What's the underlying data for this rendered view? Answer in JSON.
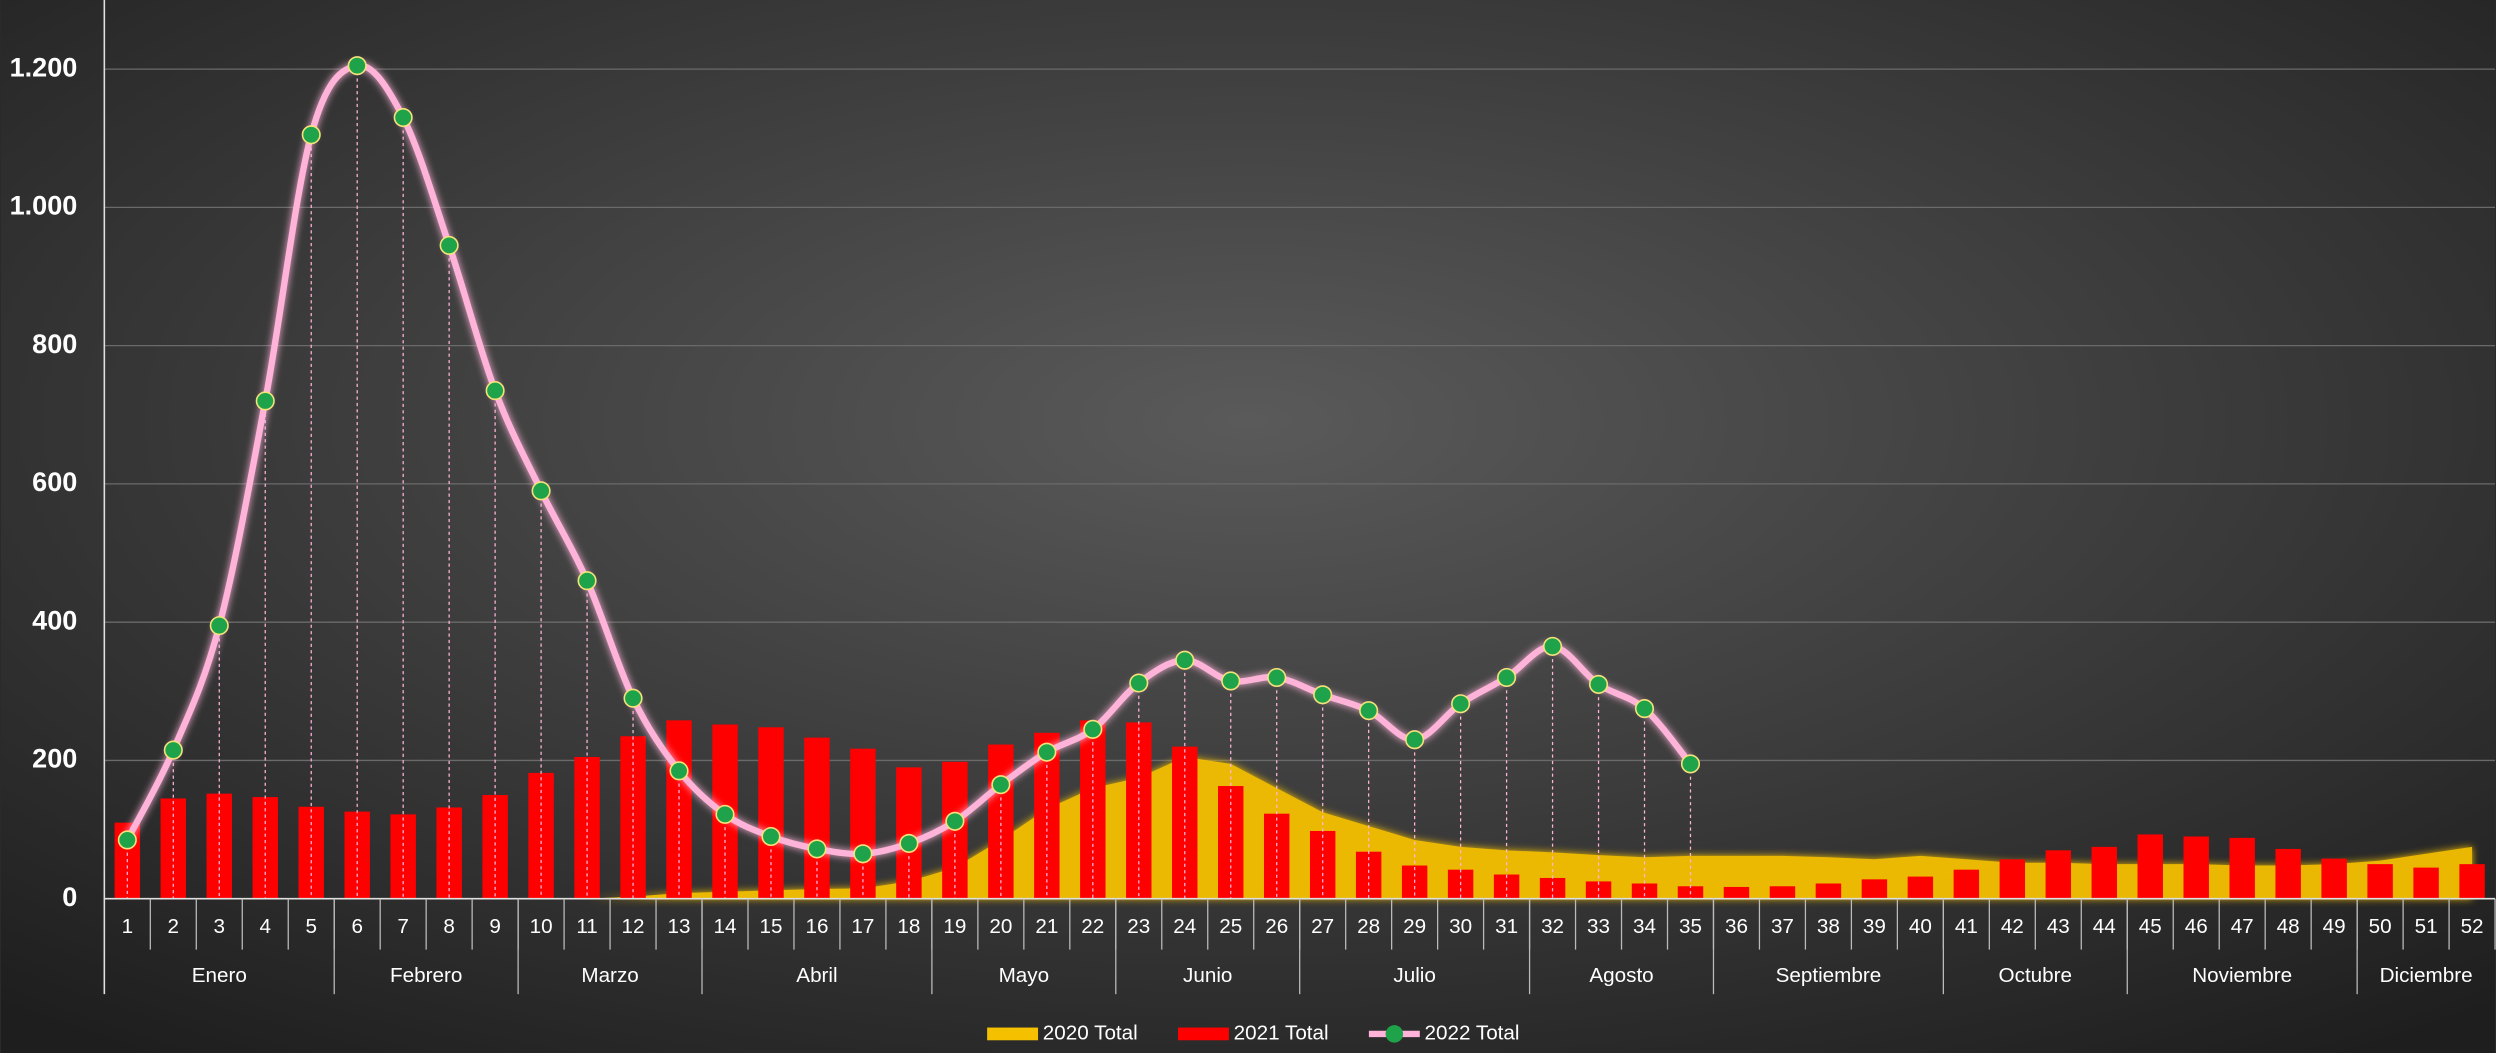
{
  "chart_data": {
    "type": "combo",
    "categories": [
      "1",
      "2",
      "3",
      "4",
      "5",
      "6",
      "7",
      "8",
      "9",
      "10",
      "11",
      "12",
      "13",
      "14",
      "15",
      "16",
      "17",
      "18",
      "19",
      "20",
      "21",
      "22",
      "23",
      "24",
      "25",
      "26",
      "27",
      "28",
      "29",
      "30",
      "31",
      "32",
      "33",
      "34",
      "35",
      "36",
      "37",
      "38",
      "39",
      "40",
      "41",
      "42",
      "43",
      "44",
      "45",
      "46",
      "47",
      "48",
      "49",
      "50",
      "51",
      "52"
    ],
    "groups": [
      {
        "label": "Enero",
        "span": 5
      },
      {
        "label": "Febrero",
        "span": 4
      },
      {
        "label": "Marzo",
        "span": 4
      },
      {
        "label": "Abril",
        "span": 5
      },
      {
        "label": "Mayo",
        "span": 4
      },
      {
        "label": "Junio",
        "span": 4
      },
      {
        "label": "Julio",
        "span": 5
      },
      {
        "label": "Agosto",
        "span": 4
      },
      {
        "label": "Septiembre",
        "span": 5
      },
      {
        "label": "Octubre",
        "span": 4
      },
      {
        "label": "Noviembre",
        "span": 5
      },
      {
        "label": "Diciembre",
        "span": 3
      }
    ],
    "series": [
      {
        "name": "2020 Total",
        "type": "area",
        "color": "#f5c000",
        "values": [
          0,
          0,
          0,
          0,
          0,
          0,
          0,
          0,
          0,
          0,
          0,
          3,
          8,
          10,
          12,
          14,
          15,
          25,
          45,
          85,
          130,
          160,
          175,
          205,
          195,
          160,
          125,
          105,
          85,
          75,
          70,
          67,
          63,
          60,
          62,
          62,
          62,
          60,
          57,
          62,
          57,
          52,
          52,
          50,
          50,
          50,
          48,
          48,
          50,
          55,
          65,
          75
        ]
      },
      {
        "name": "2021 Total",
        "type": "bar",
        "color": "#ff0000",
        "values": [
          110,
          145,
          152,
          147,
          133,
          126,
          122,
          132,
          150,
          182,
          205,
          235,
          258,
          252,
          248,
          233,
          217,
          190,
          198,
          223,
          240,
          258,
          255,
          220,
          163,
          123,
          98,
          68,
          48,
          42,
          35,
          30,
          25,
          22,
          18,
          17,
          18,
          22,
          28,
          32,
          42,
          57,
          70,
          75,
          93,
          90,
          88,
          72,
          58,
          50,
          45,
          50
        ]
      },
      {
        "name": "2022 Total",
        "type": "line",
        "color": "#ffb3d9",
        "marker_color": "#1fa34a",
        "values": [
          85,
          215,
          395,
          720,
          1105,
          1205,
          1130,
          945,
          735,
          590,
          460,
          290,
          185,
          122,
          90,
          72,
          65,
          80,
          112,
          165,
          212,
          245,
          312,
          345,
          315,
          320,
          295,
          272,
          230,
          282,
          320,
          365,
          310,
          275,
          195,
          null,
          null,
          null,
          null,
          null,
          null,
          null,
          null,
          null,
          null,
          null,
          null,
          null,
          null,
          null,
          null,
          null
        ]
      }
    ],
    "ylim": [
      0,
      1300
    ],
    "yticks": [
      0,
      200,
      400,
      600,
      800,
      {
        "value": 1000,
        "label": "1.000"
      },
      {
        "value": 1200,
        "label": "1.200"
      }
    ],
    "grid": true,
    "legend": "bottom"
  }
}
